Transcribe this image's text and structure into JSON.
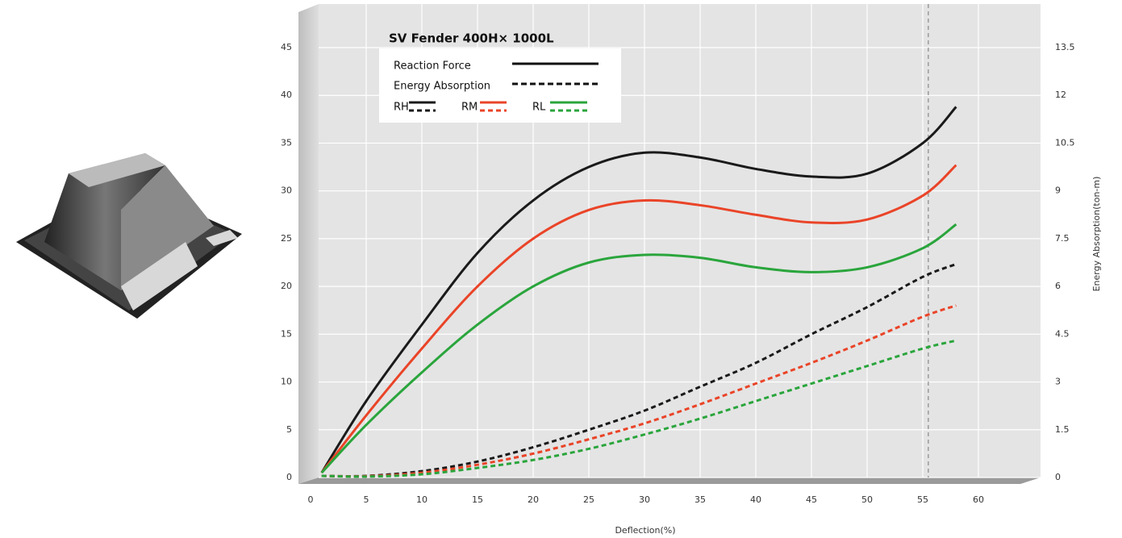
{
  "chart_data": {
    "type": "line",
    "title": "SV Fender 400H× 1000L",
    "x_label": "Deflection(%)",
    "y2_label": "Energy Absorption(ton-m)",
    "legend_labels": [
      "Reaction Force",
      "Energy Absorption"
    ],
    "x": [
      1,
      5,
      10,
      15,
      20,
      25,
      30,
      35,
      40,
      45,
      50,
      55,
      58
    ],
    "xlim": [
      0,
      60
    ],
    "xticks": [
      0,
      5,
      10,
      15,
      20,
      25,
      30,
      35,
      40,
      45,
      50,
      55,
      60
    ],
    "ylim": [
      0,
      45
    ],
    "yticks": [
      0,
      5,
      10,
      15,
      20,
      25,
      30,
      35,
      40,
      45
    ],
    "y2lim": [
      0,
      13.5
    ],
    "y2ticks": [
      0,
      1.5,
      3,
      4.5,
      6,
      7.5,
      9,
      10.5,
      12,
      13.5
    ],
    "reference_x": 55.5,
    "grid": true,
    "series": [
      {
        "name": "RH",
        "color": "#1a1a1a",
        "values": [
          0.5,
          8,
          16,
          23.5,
          29,
          32.5,
          34,
          33.5,
          32.3,
          31.5,
          31.8,
          35,
          38.8
        ]
      },
      {
        "name": "RM",
        "color": "#ea4428",
        "values": [
          0.5,
          6.5,
          13.5,
          20,
          25,
          28,
          29,
          28.5,
          27.5,
          26.7,
          27,
          29.5,
          32.7
        ]
      },
      {
        "name": "RL",
        "color": "#2aa53c",
        "values": [
          0.5,
          5.5,
          11,
          16,
          20,
          22.5,
          23.3,
          23,
          22,
          21.5,
          22,
          24,
          26.5
        ]
      },
      {
        "name": "RH",
        "color": "#1a1a1a",
        "axis": "y2",
        "dashed": true,
        "values": [
          0.05,
          0.05,
          0.2,
          0.5,
          0.95,
          1.5,
          2.1,
          2.85,
          3.6,
          4.5,
          5.35,
          6.3,
          6.7
        ]
      },
      {
        "name": "RM",
        "color": "#ea4428",
        "axis": "y2",
        "dashed": true,
        "values": [
          0.05,
          0.04,
          0.15,
          0.4,
          0.75,
          1.2,
          1.7,
          2.3,
          2.95,
          3.6,
          4.3,
          5.05,
          5.4
        ]
      },
      {
        "name": "RL",
        "color": "#2aa53c",
        "axis": "y2",
        "dashed": true,
        "values": [
          0.05,
          0.03,
          0.1,
          0.3,
          0.55,
          0.9,
          1.35,
          1.85,
          2.4,
          2.95,
          3.5,
          4.05,
          4.3
        ]
      }
    ]
  }
}
